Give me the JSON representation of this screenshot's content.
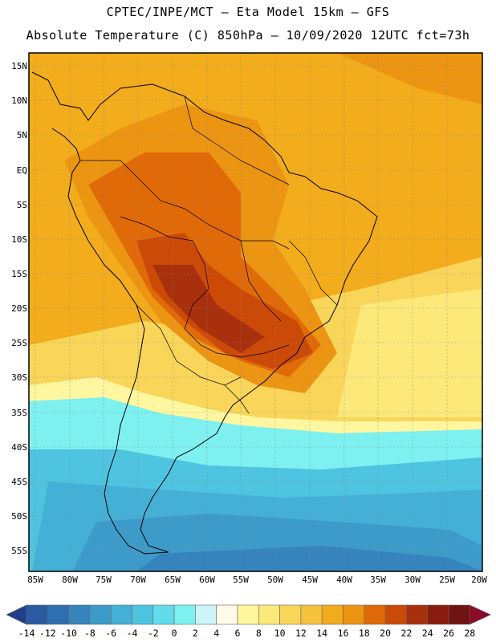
{
  "header": {
    "line1": "CPTEC/INPE/MCT –  Eta Model 15km – GFS",
    "line2": "Absolute Temperature (C) 850hPa – 10/09/2020 12UTC fct=73h"
  },
  "axes": {
    "lat_labels": [
      "15N",
      "10N",
      "5N",
      "EQ",
      "5S",
      "10S",
      "15S",
      "20S",
      "25S",
      "30S",
      "35S",
      "40S",
      "45S",
      "50S",
      "55S"
    ],
    "lon_labels": [
      "85W",
      "80W",
      "75W",
      "70W",
      "65W",
      "60W",
      "55W",
      "50W",
      "45W",
      "40W",
      "35W",
      "30W",
      "25W",
      "20W"
    ]
  },
  "colorbar": {
    "labels": [
      "-14",
      "-12",
      "-10",
      "-8",
      "-6",
      "-4",
      "-2",
      "0",
      "2",
      "4",
      "6",
      "8",
      "10",
      "12",
      "14",
      "16",
      "18",
      "20",
      "22",
      "24",
      "26",
      "28"
    ],
    "colors": [
      "#1f3f8c",
      "#2a5aa0",
      "#2f6fb0",
      "#3584bd",
      "#3d9bc9",
      "#45b0d6",
      "#4ec4e0",
      "#62dcea",
      "#7ef0f0",
      "#cdf4f6",
      "#fffbe6",
      "#fff6a0",
      "#fde97a",
      "#f9d65a",
      "#f5c23e",
      "#f2ac1c",
      "#ec9512",
      "#e06a08",
      "#cc4a08",
      "#a9300c",
      "#8a1c0e",
      "#6f1410",
      "#8a0a28"
    ]
  }
}
